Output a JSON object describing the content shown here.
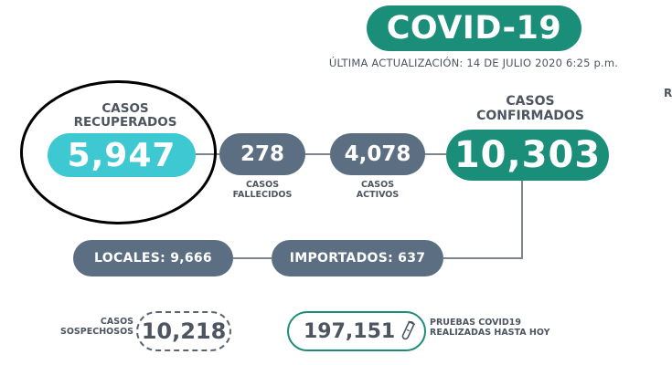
{
  "colors": {
    "teal": "#1b8e7a",
    "cyan": "#3ec9d2",
    "slate": "#5c6f82",
    "text": "#4d5560",
    "line": "#7d848c",
    "annotation": "#000000"
  },
  "header": {
    "title": "COVID-19",
    "updated": "ÚLTIMA ACTUALIZACIÓN: 14 DE JULIO 2020 6:25 p.m."
  },
  "recovered": {
    "label": "CASOS\nRECUPERADOS",
    "value": "5,947"
  },
  "deaths": {
    "label": "CASOS\nFALLECIDOS",
    "value": "278"
  },
  "active": {
    "label": "CASOS\nACTIVOS",
    "value": "4,078"
  },
  "confirmed": {
    "label": "CASOS\nCONFIRMADOS",
    "value": "10,303"
  },
  "local": {
    "text": "LOCALES: 9,666"
  },
  "imported": {
    "text": "IMPORTADOS: 637"
  },
  "suspected": {
    "label": "CASOS\nSOSPECHOSOS",
    "value": "10,218"
  },
  "tests": {
    "value": "197,151",
    "label": "PRUEBAS COVID19\nREALIZADAS HASTA HOY",
    "icon": "test-tube-icon"
  },
  "edge_text": "R"
}
